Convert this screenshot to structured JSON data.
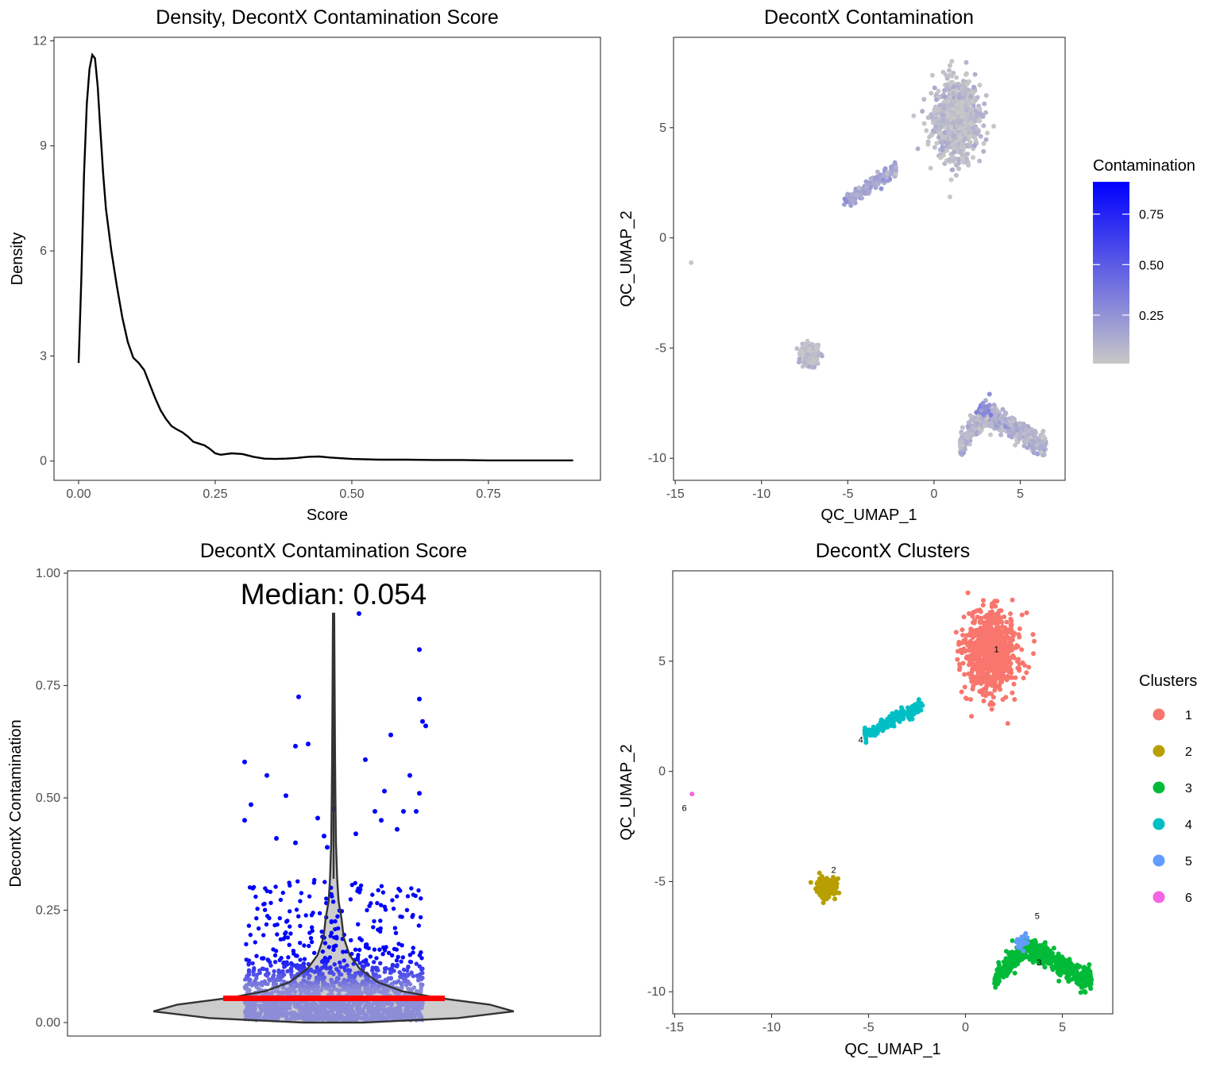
{
  "chart_data": [
    {
      "type": "line",
      "title": "Density, DecontX Contamination Score",
      "xlabel": "Score",
      "ylabel": "Density",
      "xlim": [
        -0.045,
        0.955
      ],
      "ylim": [
        -0.55,
        12.1
      ],
      "xticks": [
        0.0,
        0.25,
        0.5,
        0.75
      ],
      "xtick_labels": [
        "0.00",
        "0.25",
        "0.50",
        "0.75"
      ],
      "yticks": [
        0,
        3,
        6,
        9,
        12
      ],
      "ytick_labels": [
        "0",
        "3",
        "6",
        "9",
        "12"
      ],
      "grid": false,
      "series": [
        {
          "x": [
            0.0,
            0.005,
            0.01,
            0.015,
            0.02,
            0.025,
            0.03,
            0.035,
            0.04,
            0.045,
            0.05,
            0.055,
            0.06,
            0.07,
            0.08,
            0.09,
            0.1,
            0.11,
            0.12,
            0.13,
            0.14,
            0.15,
            0.16,
            0.17,
            0.18,
            0.19,
            0.2,
            0.21,
            0.22,
            0.23,
            0.24,
            0.25,
            0.26,
            0.27,
            0.28,
            0.3,
            0.32,
            0.34,
            0.36,
            0.38,
            0.4,
            0.42,
            0.44,
            0.46,
            0.48,
            0.5,
            0.55,
            0.6,
            0.65,
            0.7,
            0.75,
            0.8,
            0.85,
            0.9,
            0.905
          ],
          "y": [
            2.8,
            5.2,
            8.2,
            10.2,
            11.2,
            11.6,
            11.5,
            10.7,
            9.4,
            8.2,
            7.2,
            6.6,
            6.0,
            5.0,
            4.1,
            3.4,
            2.95,
            2.8,
            2.6,
            2.2,
            1.8,
            1.45,
            1.2,
            1.0,
            0.9,
            0.82,
            0.7,
            0.55,
            0.5,
            0.45,
            0.35,
            0.22,
            0.18,
            0.2,
            0.22,
            0.2,
            0.12,
            0.07,
            0.06,
            0.07,
            0.09,
            0.12,
            0.13,
            0.1,
            0.08,
            0.06,
            0.04,
            0.04,
            0.03,
            0.03,
            0.02,
            0.02,
            0.02,
            0.02,
            0.02
          ]
        }
      ]
    },
    {
      "type": "scatter",
      "title": "DecontX Contamination",
      "xlabel": "QC_UMAP_1",
      "ylabel": "QC_UMAP_2",
      "xlim": [
        -15.1,
        7.6
      ],
      "ylim": [
        -11.0,
        9.1
      ],
      "xticks": [
        -15,
        -10,
        -5,
        0,
        5
      ],
      "xtick_labels": [
        "-15",
        "-10",
        "-5",
        "0",
        "5"
      ],
      "yticks": [
        -10,
        -5,
        0,
        5
      ],
      "ytick_labels": [
        "-10",
        "-5",
        "0",
        "5"
      ],
      "grid": false,
      "color_by": "Contamination",
      "legend": {
        "title": "Contamination",
        "ticks": [
          "0.25",
          "0.50",
          "0.75"
        ],
        "tick_values": [
          0.25,
          0.5,
          0.75
        ],
        "range": [
          0.01,
          0.91
        ],
        "low_color": "#c8c8c8",
        "high_color": "#0000ff",
        "position": "right"
      },
      "regions": [
        {
          "cluster": "1",
          "center": [
            1.3,
            5.4
          ],
          "spread": [
            1.2,
            1.6
          ],
          "contamination": 0.04
        },
        {
          "cluster": "2",
          "center": [
            -7.2,
            -5.3
          ],
          "spread": [
            0.45,
            0.4
          ],
          "contamination": 0.04
        },
        {
          "cluster": "3",
          "center": [
            3.4,
            -9.0
          ],
          "spread": [
            1.4,
            0.5
          ],
          "contamination": 0.08
        },
        {
          "cluster": "4",
          "center": [
            -4.2,
            1.9
          ],
          "spread": [
            0.7,
            0.3
          ],
          "contamination": 0.15
        },
        {
          "cluster": "5",
          "center": [
            2.9,
            -7.8
          ],
          "spread": [
            0.3,
            0.3
          ],
          "contamination": 0.3
        },
        {
          "cluster": "6",
          "center": [
            -14.1,
            -1.1
          ],
          "spread": [
            0.05,
            0.05
          ],
          "contamination": 0.05
        }
      ]
    },
    {
      "type": "violin",
      "title": "DecontX Contamination Score",
      "xlabel": "",
      "ylabel": "DecontX Contamination",
      "annotation": "Median: 0.054",
      "median": 0.054,
      "ylim": [
        -0.03,
        1.0
      ],
      "yticks": [
        0.0,
        0.25,
        0.5,
        0.75,
        1.0
      ],
      "ytick_labels": [
        "0.00",
        "0.25",
        "0.50",
        "0.75",
        "1.00"
      ],
      "grid": false,
      "max_value": 0.91,
      "violin_width_profile": [
        {
          "y": 0.0,
          "w": 0.15
        },
        {
          "y": 0.01,
          "w": 0.62
        },
        {
          "y": 0.025,
          "w": 0.9
        },
        {
          "y": 0.04,
          "w": 0.78
        },
        {
          "y": 0.055,
          "w": 0.52
        },
        {
          "y": 0.07,
          "w": 0.34
        },
        {
          "y": 0.09,
          "w": 0.22
        },
        {
          "y": 0.12,
          "w": 0.13
        },
        {
          "y": 0.15,
          "w": 0.08
        },
        {
          "y": 0.19,
          "w": 0.05
        },
        {
          "y": 0.23,
          "w": 0.04
        },
        {
          "y": 0.27,
          "w": 0.025
        },
        {
          "y": 0.32,
          "w": 0.018
        },
        {
          "y": 0.4,
          "w": 0.012
        },
        {
          "y": 0.5,
          "w": 0.009
        },
        {
          "y": 0.6,
          "w": 0.007
        },
        {
          "y": 0.75,
          "w": 0.005
        },
        {
          "y": 0.91,
          "w": 0.003
        }
      ],
      "outlier_points": [
        {
          "x": -0.28,
          "y": 0.58
        },
        {
          "x": -0.26,
          "y": 0.485
        },
        {
          "x": -0.21,
          "y": 0.55
        },
        {
          "x": -0.15,
          "y": 0.505
        },
        {
          "x": -0.12,
          "y": 0.4
        },
        {
          "x": -0.11,
          "y": 0.725
        },
        {
          "x": -0.12,
          "y": 0.615
        },
        {
          "x": -0.08,
          "y": 0.62
        },
        {
          "x": -0.05,
          "y": 0.455
        },
        {
          "x": -0.03,
          "y": 0.415
        },
        {
          "x": 0.0,
          "y": 0.475
        },
        {
          "x": 0.08,
          "y": 0.91
        },
        {
          "x": 0.1,
          "y": 0.585
        },
        {
          "x": 0.07,
          "y": 0.42
        },
        {
          "x": 0.13,
          "y": 0.47
        },
        {
          "x": 0.18,
          "y": 0.64
        },
        {
          "x": 0.16,
          "y": 0.515
        },
        {
          "x": 0.2,
          "y": 0.43
        },
        {
          "x": 0.24,
          "y": 0.55
        },
        {
          "x": 0.27,
          "y": 0.83
        },
        {
          "x": 0.27,
          "y": 0.72
        },
        {
          "x": 0.28,
          "y": 0.67
        },
        {
          "x": 0.29,
          "y": 0.66
        },
        {
          "x": 0.27,
          "y": 0.51
        },
        {
          "x": 0.26,
          "y": 0.47
        },
        {
          "x": -0.28,
          "y": 0.45
        },
        {
          "x": 0.22,
          "y": 0.47
        },
        {
          "x": -0.02,
          "y": 0.39
        },
        {
          "x": 0.15,
          "y": 0.45
        },
        {
          "x": -0.18,
          "y": 0.41
        }
      ],
      "point_color_high": "#0000ff",
      "point_color_low": "#8d8dd7",
      "median_color": "#ff0000"
    },
    {
      "type": "scatter",
      "title": "DecontX Clusters",
      "xlabel": "QC_UMAP_1",
      "ylabel": "QC_UMAP_2",
      "xlim": [
        -15.1,
        7.6
      ],
      "ylim": [
        -11.0,
        9.1
      ],
      "xticks": [
        -15,
        -10,
        -5,
        0,
        5
      ],
      "xtick_labels": [
        "-15",
        "-10",
        "-5",
        "0",
        "5"
      ],
      "yticks": [
        -10,
        -5,
        0,
        5
      ],
      "ytick_labels": [
        "-10",
        "-5",
        "0",
        "5"
      ],
      "grid": false,
      "legend": {
        "title": "Clusters",
        "position": "right",
        "items": [
          {
            "label": "1",
            "color": "#f8766d"
          },
          {
            "label": "2",
            "color": "#b79f00"
          },
          {
            "label": "3",
            "color": "#00ba38"
          },
          {
            "label": "4",
            "color": "#00bfc4"
          },
          {
            "label": "5",
            "color": "#619cff"
          },
          {
            "label": "6",
            "color": "#f564e3"
          }
        ]
      },
      "cluster_labels": [
        {
          "label": "1",
          "x": 1.6,
          "y": 5.4
        },
        {
          "label": "2",
          "x": -6.8,
          "y": -4.6
        },
        {
          "label": "3",
          "x": 3.8,
          "y": -8.8
        },
        {
          "label": "4",
          "x": -5.4,
          "y": 1.3
        },
        {
          "label": "5",
          "x": 3.7,
          "y": -6.7
        },
        {
          "label": "6",
          "x": -14.5,
          "y": -1.8
        }
      ]
    }
  ]
}
